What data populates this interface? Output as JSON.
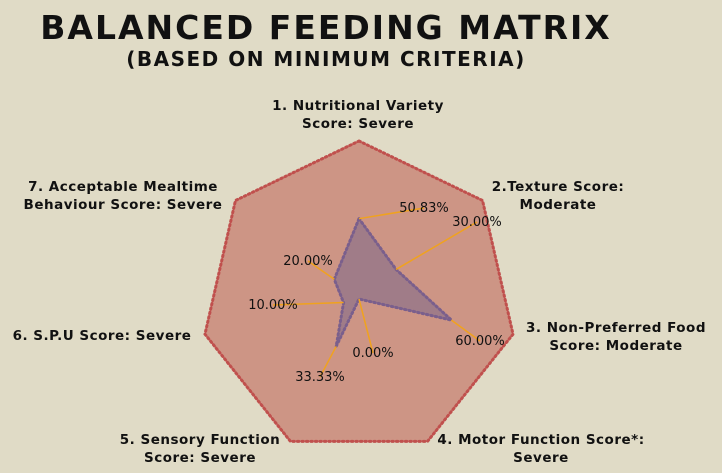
{
  "chart_data": {
    "type": "radar",
    "title": "BALANCED FEEDING MATRIX",
    "subtitle": "(BASED ON MINIMUM CRITERIA)",
    "axes": [
      {
        "label_lines": [
          "1. Nutritional Variety",
          "Score: Severe"
        ]
      },
      {
        "label_lines": [
          "2.Texture Score:",
          "Moderate"
        ]
      },
      {
        "label_lines": [
          "3. Non-Preferred Food",
          "Score: Moderate"
        ]
      },
      {
        "label_lines": [
          "4. Motor Function Score*:",
          "Severe"
        ]
      },
      {
        "label_lines": [
          "5. Sensory Function",
          "Score: Severe"
        ]
      },
      {
        "label_lines": [
          "6. S.P.U Score: Severe"
        ]
      },
      {
        "label_lines": [
          "7. Acceptable Mealtime",
          "Behaviour Score: Severe"
        ]
      }
    ],
    "series": [
      {
        "values": [
          100,
          100,
          100,
          100,
          100,
          100,
          100
        ],
        "fill": "#cd9585",
        "stroke": "#c0504d"
      },
      {
        "values": [
          50.83,
          30.0,
          60.0,
          0.0,
          33.33,
          10.0,
          20.0
        ],
        "fill": "#a07c88",
        "stroke": "#7a5f8c"
      }
    ],
    "data_labels": [
      "50.83%",
      "30.00%",
      "60.00%",
      "0.00%",
      "33.33%",
      "10.00%",
      "20.00%"
    ],
    "r_range": [
      0,
      100
    ],
    "leader_color": "#f0a21e"
  }
}
